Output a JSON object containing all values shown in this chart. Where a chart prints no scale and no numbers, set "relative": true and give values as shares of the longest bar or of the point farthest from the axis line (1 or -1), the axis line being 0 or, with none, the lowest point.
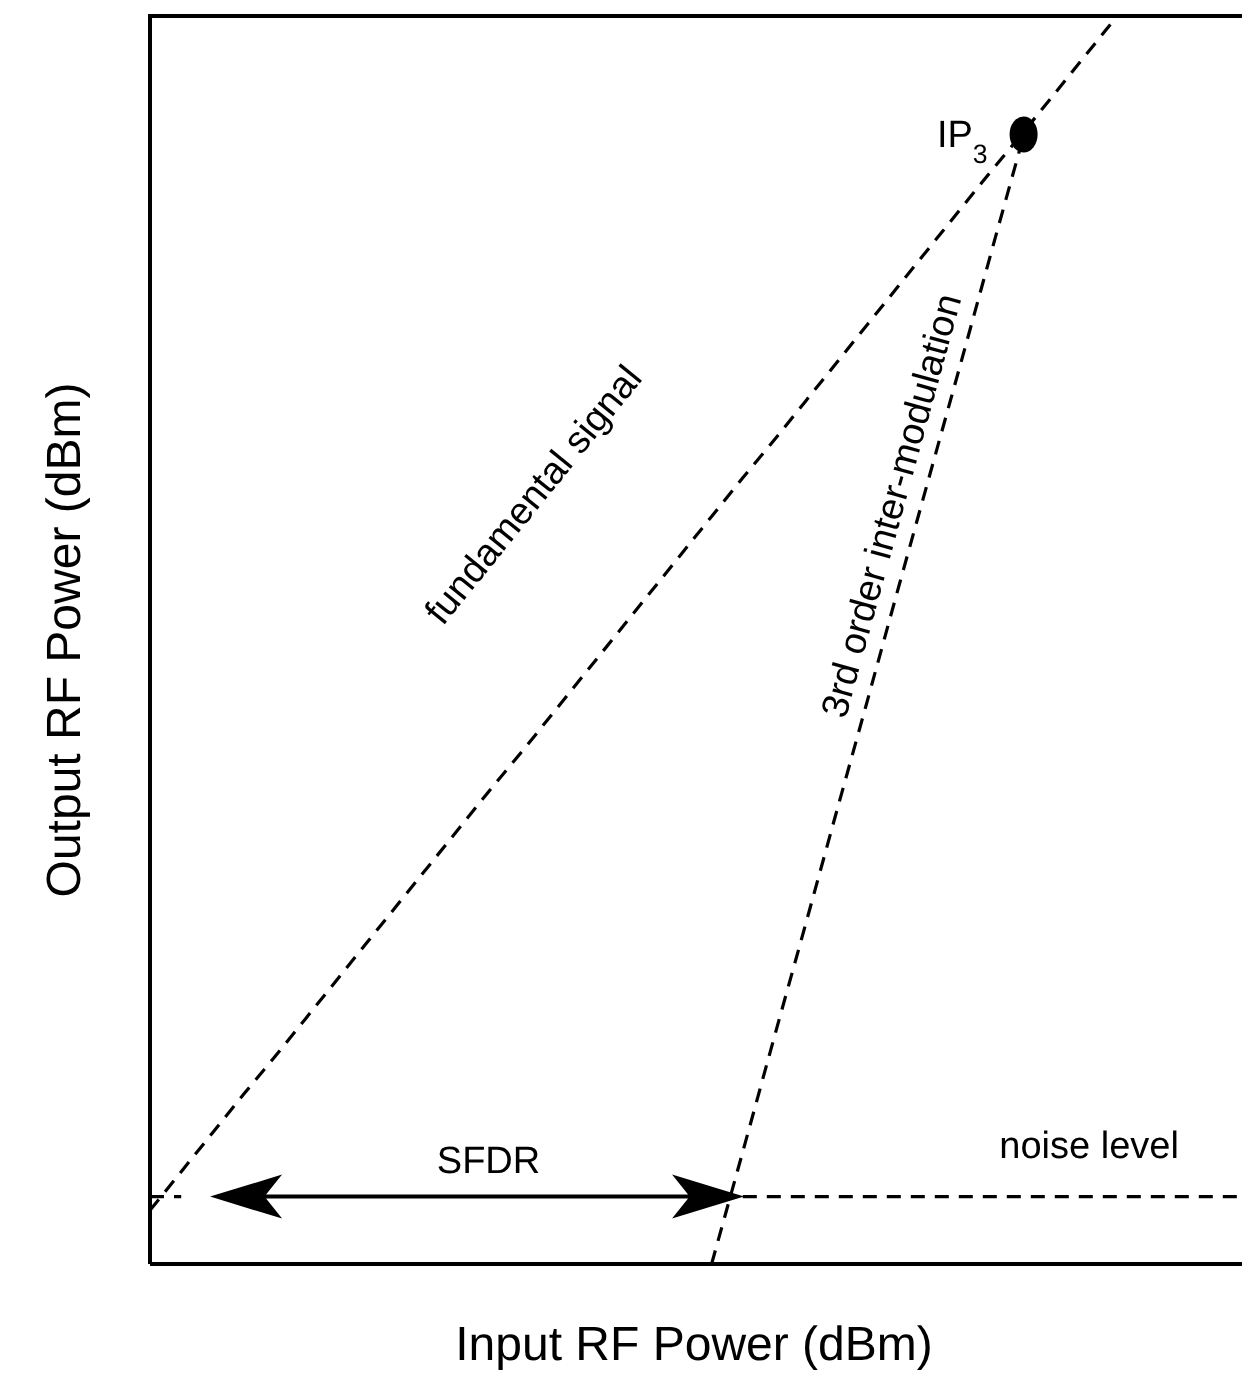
{
  "chart_data": {
    "type": "line",
    "relative": true,
    "xlabel": "Input RF Power (dBm)",
    "ylabel": "Output RF Power (dBm)",
    "line_style": "dashed",
    "marker": "none",
    "legend": false,
    "categories": [
      null,
      null,
      null,
      null,
      null,
      null,
      null,
      null,
      null,
      null,
      null,
      null,
      null,
      null,
      null,
      null,
      null,
      null,
      null,
      null,
      null,
      null,
      null,
      null,
      null,
      null,
      null,
      null,
      null,
      null,
      null,
      null,
      null,
      null,
      null,
      null
    ],
    "series": [
      {
        "name": "fundamental signal",
        "color": "#000000",
        "values": [
          0.043,
          0.074,
          0.105,
          0.136,
          0.166,
          0.197,
          0.228,
          0.259,
          0.29,
          0.321,
          0.352,
          0.383,
          0.413,
          0.444,
          0.475,
          0.506,
          0.537,
          0.568,
          0.599,
          0.63,
          0.66,
          0.691,
          0.722,
          0.753,
          0.784,
          0.815,
          0.846,
          0.877,
          0.907,
          0.938,
          0.969,
          1.0,
          null,
          null,
          null,
          null
        ]
      },
      {
        "name": "3rd order inter-modulation",
        "color": "#000000",
        "values": [
          null,
          null,
          null,
          null,
          null,
          null,
          null,
          null,
          null,
          null,
          null,
          null,
          null,
          null,
          null,
          null,
          null,
          null,
          0,
          0.09,
          0.181,
          0.271,
          0.362,
          0.452,
          0.543,
          0.633,
          0.723,
          0.814,
          0.904,
          null,
          null,
          null,
          null,
          null,
          null,
          null
        ]
      },
      {
        "name": "noise level",
        "color": "#000000",
        "values": [
          0.054,
          0.054,
          null,
          null,
          null,
          null,
          null,
          null,
          null,
          null,
          null,
          null,
          null,
          null,
          null,
          null,
          null,
          null,
          null,
          0.054,
          0.054,
          0.054,
          0.054,
          0.054,
          0.054,
          0.054,
          0.054,
          0.054,
          0.054,
          0.054,
          0.054,
          0.054,
          0.054,
          0.054,
          0.054,
          0.054
        ]
      }
    ],
    "annotations": [
      "SFDR",
      "IP$_{3}$"
    ]
  }
}
